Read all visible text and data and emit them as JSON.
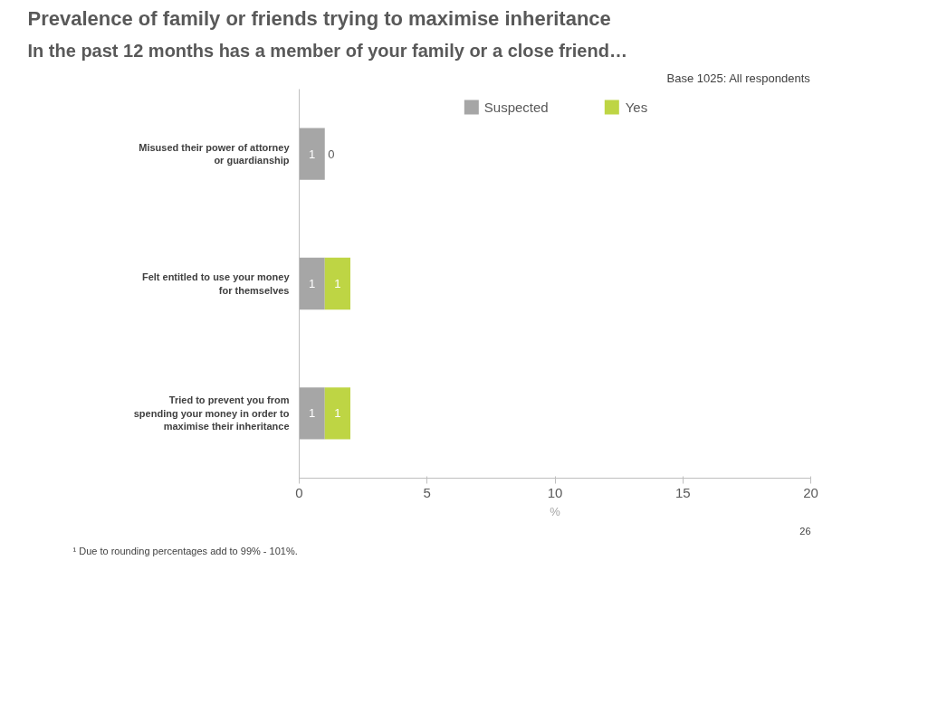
{
  "chart_data": {
    "type": "bar",
    "orientation": "horizontal",
    "stacked": true,
    "title": "Prevalence of family or friends trying to maximise inheritance",
    "subtitle": "In the past 12 months has a member of your family or a close friend…",
    "categories": [
      "Misused their power of attorney or guardianship",
      "Felt entitled to use your money for themselves",
      "Tried to prevent you from spending your money in order to maximise their inheritance"
    ],
    "series": [
      {
        "name": "Suspected",
        "color": "#a6a6a6",
        "values": [
          1,
          1,
          1
        ]
      },
      {
        "name": "Yes",
        "color": "#bed544",
        "values": [
          0,
          1,
          1
        ]
      }
    ],
    "xlim": [
      0,
      20
    ],
    "xticks": [
      0,
      5,
      10,
      15,
      20
    ],
    "xlabel": "%",
    "data_labels": true,
    "legend": "top",
    "grid": false,
    "annotations": [
      "Base 1025: All respondents",
      "¹ Due to rounding percentages add to 99% - 101%.",
      "26"
    ]
  }
}
